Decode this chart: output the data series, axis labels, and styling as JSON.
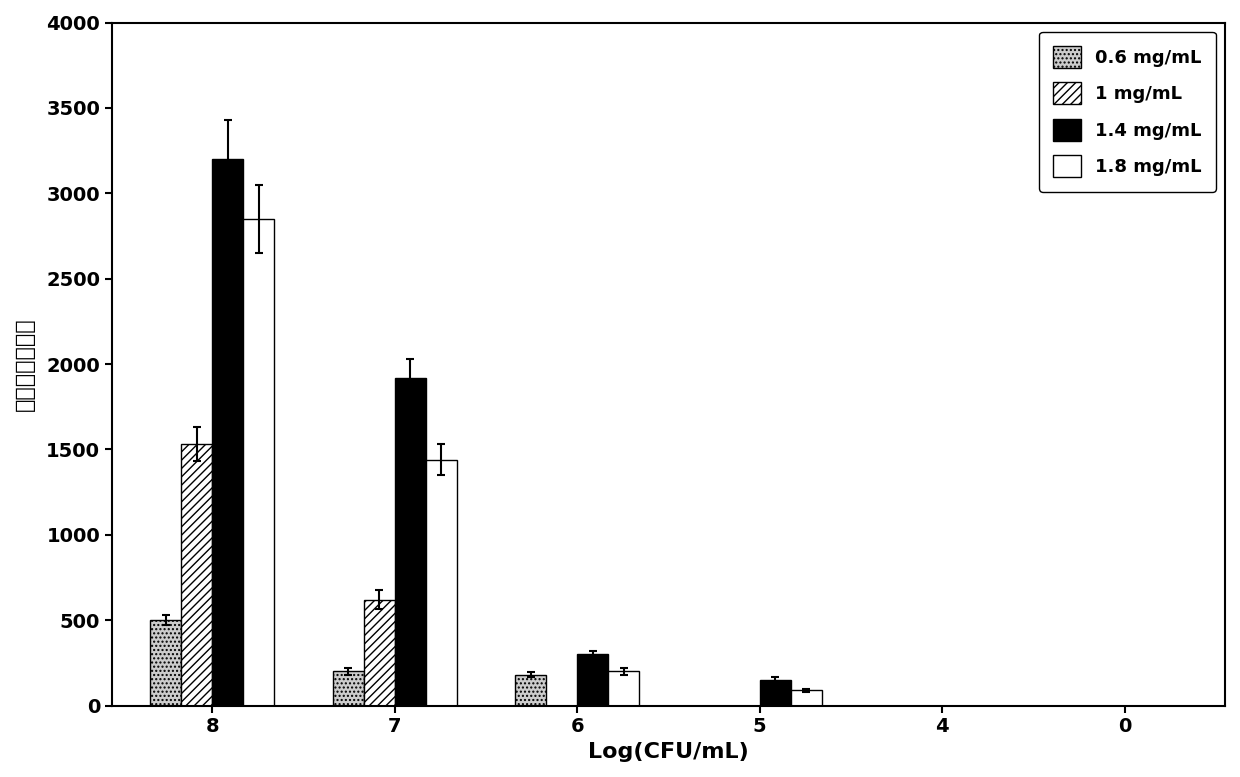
{
  "categories": [
    "8",
    "7",
    "6",
    "5",
    "4",
    "0"
  ],
  "series": [
    {
      "label": "0.6 mg/mL",
      "values": [
        500,
        200,
        180,
        0,
        0,
        0
      ],
      "errors": [
        30,
        20,
        15,
        0,
        0,
        0
      ],
      "hatch": "....",
      "facecolor": "#cccccc",
      "edgecolor": "#000000"
    },
    {
      "label": "1 mg/mL",
      "values": [
        1530,
        620,
        0,
        0,
        0,
        0
      ],
      "errors": [
        100,
        55,
        0,
        0,
        0,
        0
      ],
      "hatch": "////",
      "facecolor": "#ffffff",
      "edgecolor": "#000000"
    },
    {
      "label": "1.4 mg/mL",
      "values": [
        3200,
        1920,
        300,
        150,
        0,
        0
      ],
      "errors": [
        230,
        110,
        20,
        15,
        0,
        0
      ],
      "hatch": "....",
      "facecolor": "#000000",
      "edgecolor": "#000000"
    },
    {
      "label": "1.8 mg/mL",
      "values": [
        2850,
        1440,
        200,
        90,
        0,
        0
      ],
      "errors": [
        200,
        90,
        20,
        10,
        0,
        0
      ],
      "hatch": "====",
      "facecolor": "#ffffff",
      "edgecolor": "#000000"
    }
  ],
  "xlabel": "Log(CFU/mL)",
  "ylabel": "检测线信号强度",
  "ylim": [
    0,
    4000
  ],
  "yticks": [
    0,
    500,
    1000,
    1500,
    2000,
    2500,
    3000,
    3500,
    4000
  ],
  "bar_width": 0.17,
  "background_color": "#ffffff",
  "legend_fontsize": 13,
  "axis_fontsize": 16,
  "tick_fontsize": 14
}
